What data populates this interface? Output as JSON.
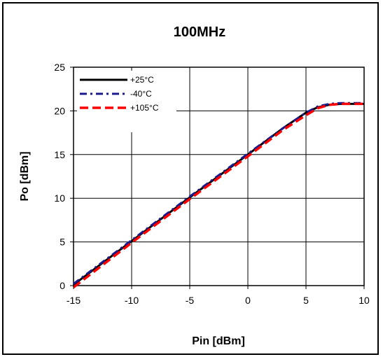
{
  "chart_data": {
    "type": "line",
    "title": "100MHz",
    "xlabel": "Pin [dBm]",
    "ylabel": "Po [dBm]",
    "xlim": [
      -15,
      10
    ],
    "ylim": [
      0,
      25
    ],
    "xticks": [
      "-15",
      "-10",
      "-5",
      "0",
      "5",
      "10"
    ],
    "yticks": [
      "0",
      "5",
      "10",
      "15",
      "20",
      "25"
    ],
    "grid": true,
    "legend": "top-left",
    "series": [
      {
        "name": "+25°C",
        "color": "#000000",
        "style": "solid",
        "x": [
          -15,
          -10,
          -5,
          0,
          3,
          5,
          6,
          7,
          8,
          10
        ],
        "y": [
          0.1,
          5.1,
          10.1,
          15.0,
          18.0,
          19.8,
          20.4,
          20.7,
          20.8,
          20.8
        ]
      },
      {
        "name": "-40°C",
        "color": "#1a1a8c",
        "style": "dashdot",
        "x": [
          -15,
          -10,
          -5,
          0,
          3,
          5,
          6,
          7,
          8,
          10
        ],
        "y": [
          0.2,
          5.2,
          10.2,
          15.1,
          18.0,
          19.8,
          20.5,
          20.8,
          20.9,
          20.9
        ]
      },
      {
        "name": "+105°C",
        "color": "#ff0000",
        "style": "dashed",
        "x": [
          -15,
          -10,
          -5,
          0,
          3,
          5,
          6,
          7,
          8,
          10
        ],
        "y": [
          -0.2,
          4.9,
          9.9,
          14.8,
          17.8,
          19.5,
          20.3,
          20.7,
          20.8,
          20.8
        ]
      }
    ]
  }
}
